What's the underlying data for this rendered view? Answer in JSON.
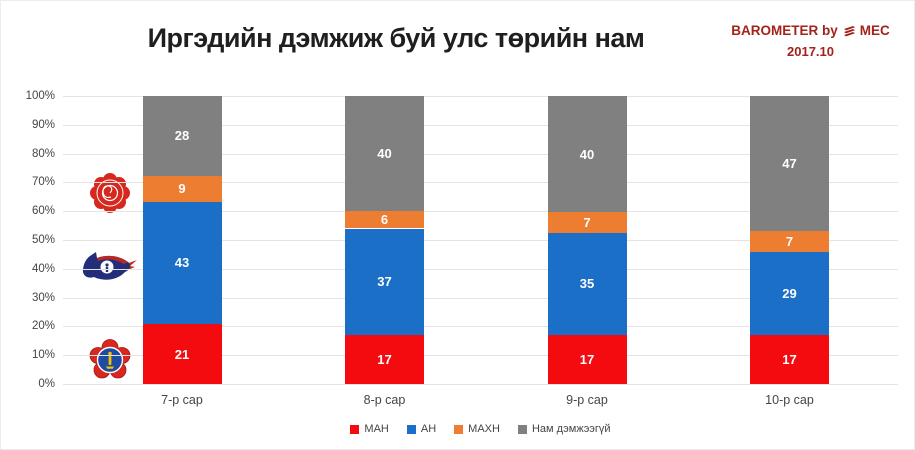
{
  "header": {
    "title": "Иргэдийн дэмжиж буй улс төрийн нам",
    "brand": {
      "line1_prefix": "BAROMETER by",
      "line1_suffix": "MEC",
      "line2": "2017.10",
      "color": "#a3231c",
      "logo_icon": "mec-layers-icon"
    }
  },
  "chart_data": {
    "type": "bar",
    "variant": "stacked-100-percent-column",
    "title": "Иргэдийн дэмжиж буй улс төрийн нам",
    "categories": [
      "7-р сар",
      "8-р сар",
      "9-р сар",
      "10-р сар"
    ],
    "series": [
      {
        "name": "МАН",
        "color": "#f40b0f",
        "values": [
          21,
          17,
          17,
          17
        ]
      },
      {
        "name": "АН",
        "color": "#1b6fc7",
        "values": [
          43,
          37,
          35,
          29
        ]
      },
      {
        "name": "МАХН",
        "color": "#ed7d31",
        "values": [
          9,
          6,
          7,
          7
        ]
      },
      {
        "name": "Нам дэмжээгүй",
        "color": "#808080",
        "values": [
          28,
          40,
          40,
          47
        ]
      }
    ],
    "y_axis": {
      "min": 0,
      "max": 100,
      "step": 10,
      "tick_labels": [
        "0%",
        "10%",
        "20%",
        "30%",
        "40%",
        "50%",
        "60%",
        "70%",
        "80%",
        "90%",
        "100%"
      ]
    },
    "grid": true,
    "legend_position": "bottom",
    "data_label_color": "#ffffff",
    "side_icons": [
      "mahn-rose-logo-icon",
      "an-horse-logo-icon",
      "man-flower-logo-icon"
    ]
  }
}
